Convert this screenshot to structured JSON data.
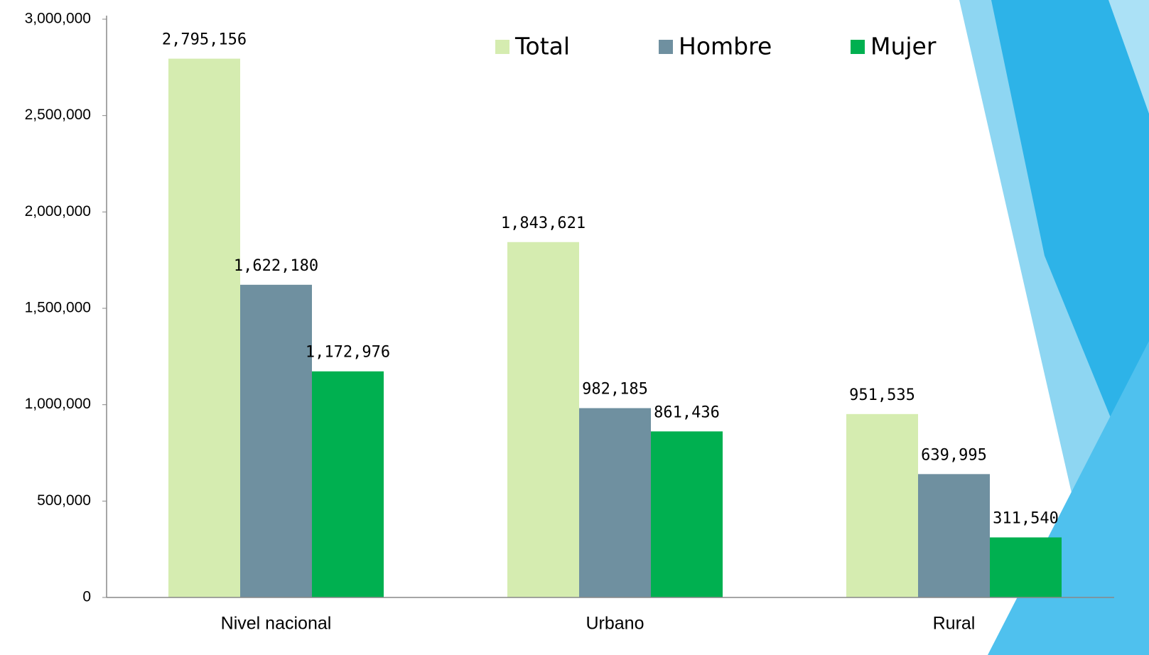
{
  "chart_data": {
    "type": "bar",
    "categories": [
      "Nivel nacional",
      "Urbano",
      "Rural"
    ],
    "series": [
      {
        "name": "Total",
        "color": "#d5ecb0",
        "values": [
          2795156,
          1843621,
          951535
        ],
        "value_labels": [
          "2,795,156",
          "1,843,621",
          "951,535"
        ]
      },
      {
        "name": "Hombre",
        "color": "#6f90a0",
        "values": [
          1622180,
          982185,
          639995
        ],
        "value_labels": [
          "1,622,180",
          "982,185",
          "639,995"
        ]
      },
      {
        "name": "Mujer",
        "color": "#00b050",
        "values": [
          1172976,
          861436,
          311540
        ],
        "value_labels": [
          "1,172,976",
          "861,436",
          "311,540"
        ]
      }
    ],
    "ylim": [
      0,
      3000000
    ],
    "yticks": [
      0,
      {
        "value": 500000,
        "label": "500,000"
      },
      {
        "value": 1000000,
        "label": "1,000,000"
      },
      {
        "value": 1500000,
        "label": "1,500,000"
      },
      {
        "value": 2000000,
        "label": "2,000,000"
      },
      {
        "value": 2500000,
        "label": "2,500,000"
      },
      {
        "value": 3000000,
        "label": "3,000,000"
      }
    ],
    "grid": false,
    "legend": "top-right"
  }
}
